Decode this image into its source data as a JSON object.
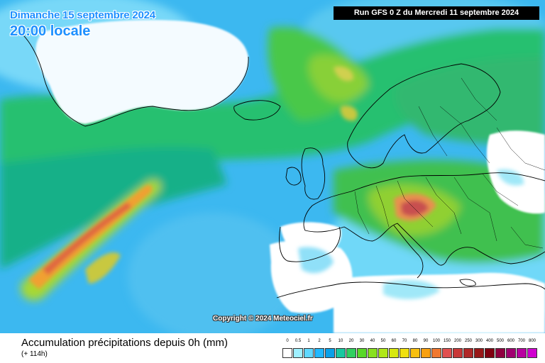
{
  "header": {
    "date_label": "Dimanche 15 septembre 2024",
    "time_label": "20:00 locale",
    "run_label": "Run GFS 0 Z du Mercredi 11 septembre 2024"
  },
  "map": {
    "copyright": "Copyright © 2024 Meteociel.fr"
  },
  "footer": {
    "title": "Accumulation précipitations depuis 0h (mm)",
    "subtitle": "(+ 114h)"
  },
  "legend": {
    "labels": [
      "0",
      "0.5",
      "1",
      "2",
      "5",
      "10",
      "20",
      "30",
      "40",
      "50",
      "60",
      "70",
      "80",
      "90",
      "100",
      "150",
      "200",
      "250",
      "300",
      "400",
      "500",
      "600",
      "700",
      "800"
    ],
    "colors": [
      "#ffffff",
      "#a0f0ff",
      "#60d8ff",
      "#20b8ff",
      "#0aa0e8",
      "#18c8a0",
      "#30d060",
      "#58d828",
      "#88e020",
      "#b0e818",
      "#d8e810",
      "#f0e010",
      "#f8c010",
      "#f8a010",
      "#f07830",
      "#e05050",
      "#c83838",
      "#b02828",
      "#981818",
      "#800010",
      "#900040",
      "#a00070",
      "#b800a0",
      "#d000d0"
    ]
  },
  "colors": {
    "ocean_light": "#58c8f8",
    "ocean_blue": "#1e90ff",
    "precip_green": "#38c050",
    "precip_yellow": "#c8d828",
    "precip_orange": "#f09038",
    "precip_red": "#d04848",
    "land": "#ffffff",
    "title_blue": "#1e90ff"
  }
}
